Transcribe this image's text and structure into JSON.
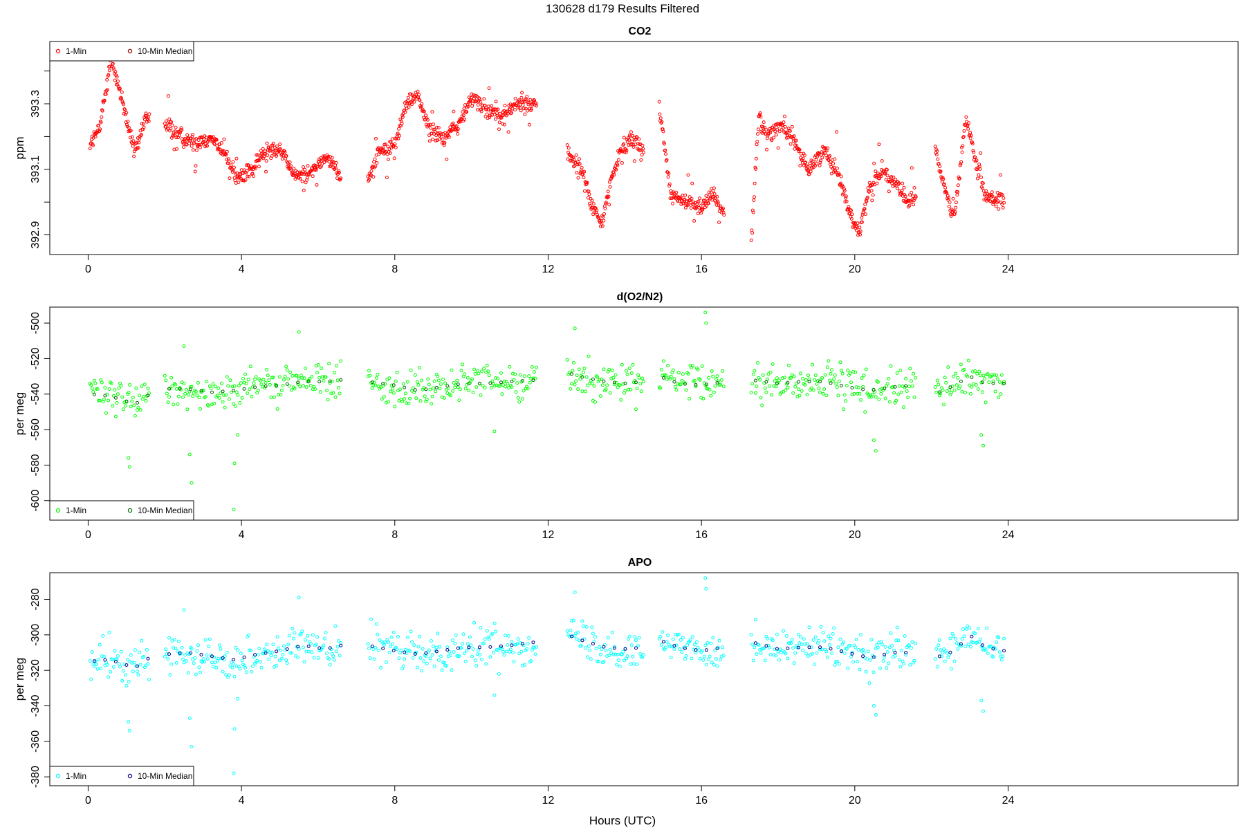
{
  "figure": {
    "title": "130628   d179   Results Filtered",
    "xlabel": "Hours (UTC)"
  },
  "chart_data": [
    {
      "type": "scatter",
      "title": "CO2",
      "ylabel": "ppm",
      "xlim": [
        -1,
        30
      ],
      "ylim": [
        392.84,
        393.49
      ],
      "xticks": [
        0,
        4,
        8,
        12,
        16,
        20,
        24
      ],
      "yticks": [
        392.9,
        393.0,
        393.1,
        393.2,
        393.3,
        393.4
      ],
      "ytick_labels": [
        "392.9",
        "",
        "393.1",
        "",
        "393.3",
        ""
      ],
      "legend_position": "top-left",
      "legend": [
        {
          "label": "1-Min",
          "color": "#ff0000"
        },
        {
          "label": "10-Min Median",
          "color": "#8b0000"
        }
      ],
      "series_color": "#ff0000",
      "median_color": "#8b0000",
      "segments": [
        {
          "x0": 0.05,
          "x1": 1.6,
          "points": [
            [
              0.05,
              393.18
            ],
            [
              0.3,
              393.22
            ],
            [
              0.45,
              393.34
            ],
            [
              0.6,
              393.43
            ],
            [
              0.75,
              393.38
            ],
            [
              0.9,
              393.3
            ],
            [
              1.05,
              393.23
            ],
            [
              1.2,
              393.16
            ],
            [
              1.35,
              393.19
            ],
            [
              1.5,
              393.25
            ],
            [
              1.6,
              393.25
            ]
          ]
        },
        {
          "x0": 2.0,
          "x1": 6.6,
          "points": [
            [
              2.0,
              393.24
            ],
            [
              2.4,
              393.2
            ],
            [
              2.8,
              393.18
            ],
            [
              3.2,
              393.2
            ],
            [
              3.6,
              393.14
            ],
            [
              3.9,
              393.07
            ],
            [
              4.3,
              393.1
            ],
            [
              4.7,
              393.17
            ],
            [
              5.0,
              393.16
            ],
            [
              5.4,
              393.08
            ],
            [
              5.8,
              393.09
            ],
            [
              6.2,
              393.14
            ],
            [
              6.6,
              393.08
            ]
          ]
        },
        {
          "x0": 7.3,
          "x1": 11.7,
          "points": [
            [
              7.3,
              393.07
            ],
            [
              7.6,
              393.16
            ],
            [
              8.0,
              393.17
            ],
            [
              8.3,
              393.3
            ],
            [
              8.6,
              393.33
            ],
            [
              8.9,
              393.22
            ],
            [
              9.3,
              393.2
            ],
            [
              9.7,
              393.24
            ],
            [
              10.0,
              393.32
            ],
            [
              10.4,
              393.28
            ],
            [
              10.8,
              393.26
            ],
            [
              11.2,
              393.3
            ],
            [
              11.6,
              393.3
            ]
          ]
        },
        {
          "x0": 12.5,
          "x1": 14.5,
          "points": [
            [
              12.5,
              393.15
            ],
            [
              12.9,
              393.09
            ],
            [
              13.1,
              393.0
            ],
            [
              13.4,
              392.93
            ],
            [
              13.6,
              393.05
            ],
            [
              13.9,
              393.16
            ],
            [
              14.2,
              393.2
            ],
            [
              14.5,
              393.15
            ]
          ]
        },
        {
          "x0": 14.9,
          "x1": 16.6,
          "points": [
            [
              14.9,
              393.3
            ],
            [
              15.2,
              393.02
            ],
            [
              15.6,
              393.0
            ],
            [
              16.0,
              392.99
            ],
            [
              16.3,
              393.02
            ],
            [
              16.6,
              392.96
            ]
          ]
        },
        {
          "x0": 17.3,
          "x1": 18.8,
          "points": [
            [
              17.3,
              392.88
            ],
            [
              17.5,
              393.27
            ],
            [
              17.7,
              393.2
            ],
            [
              18.1,
              393.24
            ],
            [
              18.5,
              393.16
            ],
            [
              18.8,
              393.1
            ]
          ]
        },
        {
          "x0": 18.8,
          "x1": 21.6,
          "points": [
            [
              18.8,
              393.1
            ],
            [
              19.2,
              393.16
            ],
            [
              19.6,
              393.08
            ],
            [
              19.9,
              392.96
            ],
            [
              20.1,
              392.9
            ],
            [
              20.4,
              393.05
            ],
            [
              20.7,
              393.1
            ],
            [
              21.0,
              393.06
            ],
            [
              21.4,
              393.0
            ],
            [
              21.6,
              393.02
            ]
          ]
        },
        {
          "x0": 22.1,
          "x1": 23.9,
          "points": [
            [
              22.1,
              393.16
            ],
            [
              22.4,
              393.02
            ],
            [
              22.6,
              392.95
            ],
            [
              22.9,
              393.26
            ],
            [
              23.1,
              393.15
            ],
            [
              23.4,
              393.02
            ],
            [
              23.9,
              393.0
            ]
          ]
        }
      ]
    },
    {
      "type": "scatter",
      "title": "d(O2/N2)",
      "ylabel": "per meg",
      "xlim": [
        -1,
        30
      ],
      "ylim": [
        -611,
        -491
      ],
      "xticks": [
        0,
        4,
        8,
        12,
        16,
        20,
        24
      ],
      "yticks": [
        -600,
        -580,
        -560,
        -540,
        -520,
        -500
      ],
      "ytick_labels": [
        "-600",
        "-580",
        "-560",
        "-540",
        "-520",
        "-500"
      ],
      "legend_position": "bottom-left",
      "legend": [
        {
          "label": "1-Min",
          "color": "#00ff00"
        },
        {
          "label": "10-Min Median",
          "color": "#006400"
        }
      ],
      "series_color": "#00ff00",
      "median_color": "#006400",
      "segments": [
        {
          "x0": 0.05,
          "x1": 1.6,
          "points": [
            [
              0.05,
              -540
            ],
            [
              0.5,
              -541
            ],
            [
              0.9,
              -543
            ],
            [
              1.2,
              -546
            ],
            [
              1.5,
              -542
            ],
            [
              1.6,
              -540
            ]
          ]
        },
        {
          "x0": 2.0,
          "x1": 6.6,
          "points": [
            [
              2.0,
              -537
            ],
            [
              2.6,
              -537
            ],
            [
              3.2,
              -539
            ],
            [
              3.8,
              -538
            ],
            [
              4.4,
              -536
            ],
            [
              5.0,
              -535
            ],
            [
              5.6,
              -533
            ],
            [
              6.2,
              -533
            ],
            [
              6.6,
              -532
            ]
          ]
        },
        {
          "x0": 7.3,
          "x1": 11.7,
          "points": [
            [
              7.3,
              -533
            ],
            [
              8.0,
              -535
            ],
            [
              8.6,
              -538
            ],
            [
              9.2,
              -536
            ],
            [
              9.8,
              -534
            ],
            [
              10.4,
              -534
            ],
            [
              11.0,
              -533
            ],
            [
              11.7,
              -532
            ]
          ]
        },
        {
          "x0": 12.5,
          "x1": 14.5,
          "points": [
            [
              12.5,
              -528
            ],
            [
              13.0,
              -531
            ],
            [
              13.5,
              -533
            ],
            [
              14.0,
              -534
            ],
            [
              14.5,
              -533
            ]
          ]
        },
        {
          "x0": 14.9,
          "x1": 16.6,
          "points": [
            [
              14.9,
              -530
            ],
            [
              15.4,
              -534
            ],
            [
              16.0,
              -535
            ],
            [
              16.6,
              -533
            ]
          ]
        },
        {
          "x0": 17.3,
          "x1": 21.6,
          "points": [
            [
              17.3,
              -532
            ],
            [
              18.0,
              -534
            ],
            [
              18.6,
              -533
            ],
            [
              19.2,
              -533
            ],
            [
              19.8,
              -536
            ],
            [
              20.4,
              -538
            ],
            [
              21.0,
              -536
            ],
            [
              21.6,
              -535
            ]
          ]
        },
        {
          "x0": 22.1,
          "x1": 23.9,
          "points": [
            [
              22.1,
              -540
            ],
            [
              22.6,
              -535
            ],
            [
              23.0,
              -530
            ],
            [
              23.4,
              -534
            ],
            [
              23.9,
              -534
            ]
          ]
        }
      ],
      "outliers": [
        [
          1.05,
          -576
        ],
        [
          1.08,
          -581
        ],
        [
          2.65,
          -574
        ],
        [
          2.7,
          -590
        ],
        [
          3.8,
          -605
        ],
        [
          3.82,
          -579
        ],
        [
          3.9,
          -563
        ],
        [
          2.5,
          -513
        ],
        [
          5.5,
          -505
        ],
        [
          12.7,
          -503
        ],
        [
          16.1,
          -494
        ],
        [
          16.12,
          -500
        ],
        [
          10.6,
          -561
        ],
        [
          20.5,
          -566
        ],
        [
          20.55,
          -572
        ],
        [
          23.3,
          -563
        ],
        [
          23.35,
          -569
        ]
      ]
    },
    {
      "type": "scatter",
      "title": "APO",
      "ylabel": "per meg",
      "xlim": [
        -1,
        30
      ],
      "ylim": [
        -385,
        -265
      ],
      "xticks": [
        0,
        4,
        8,
        12,
        16,
        20,
        24
      ],
      "yticks": [
        -380,
        -360,
        -340,
        -320,
        -300,
        -280
      ],
      "ytick_labels": [
        "-380",
        "-360",
        "-340",
        "-320",
        "-300",
        "-280"
      ],
      "legend_position": "bottom-left",
      "legend": [
        {
          "label": "1-Min",
          "color": "#00ffff"
        },
        {
          "label": "10-Min Median",
          "color": "#00008b"
        }
      ],
      "series_color": "#00ffff",
      "median_color": "#00008b",
      "segments": [
        {
          "x0": 0.05,
          "x1": 1.6,
          "points": [
            [
              0.05,
              -315
            ],
            [
              0.5,
              -314
            ],
            [
              0.9,
              -316
            ],
            [
              1.2,
              -319
            ],
            [
              1.5,
              -314
            ],
            [
              1.6,
              -313
            ]
          ]
        },
        {
          "x0": 2.0,
          "x1": 6.6,
          "points": [
            [
              2.0,
              -311
            ],
            [
              2.6,
              -310
            ],
            [
              3.2,
              -312
            ],
            [
              3.8,
              -314
            ],
            [
              4.4,
              -311
            ],
            [
              5.0,
              -309
            ],
            [
              5.6,
              -306
            ],
            [
              6.2,
              -308
            ],
            [
              6.6,
              -306
            ]
          ]
        },
        {
          "x0": 7.3,
          "x1": 11.7,
          "points": [
            [
              7.3,
              -306
            ],
            [
              8.0,
              -309
            ],
            [
              8.6,
              -311
            ],
            [
              9.2,
              -309
            ],
            [
              9.8,
              -307
            ],
            [
              10.4,
              -307
            ],
            [
              11.0,
              -306
            ],
            [
              11.7,
              -304
            ]
          ]
        },
        {
          "x0": 12.5,
          "x1": 14.5,
          "points": [
            [
              12.5,
              -300
            ],
            [
              13.0,
              -304
            ],
            [
              13.5,
              -307
            ],
            [
              14.0,
              -308
            ],
            [
              14.5,
              -307
            ]
          ]
        },
        {
          "x0": 14.9,
          "x1": 16.6,
          "points": [
            [
              14.9,
              -303
            ],
            [
              15.4,
              -307
            ],
            [
              16.0,
              -309
            ],
            [
              16.6,
              -307
            ]
          ]
        },
        {
          "x0": 17.3,
          "x1": 21.6,
          "points": [
            [
              17.3,
              -304
            ],
            [
              18.0,
              -308
            ],
            [
              18.6,
              -307
            ],
            [
              19.2,
              -307
            ],
            [
              19.8,
              -310
            ],
            [
              20.4,
              -313
            ],
            [
              21.0,
              -310
            ],
            [
              21.6,
              -310
            ]
          ]
        },
        {
          "x0": 22.1,
          "x1": 23.9,
          "points": [
            [
              22.1,
              -313
            ],
            [
              22.6,
              -309
            ],
            [
              23.0,
              -300
            ],
            [
              23.4,
              -307
            ],
            [
              23.9,
              -309
            ]
          ]
        }
      ],
      "outliers": [
        [
          1.05,
          -349
        ],
        [
          1.08,
          -354
        ],
        [
          2.65,
          -347
        ],
        [
          2.7,
          -363
        ],
        [
          3.8,
          -378
        ],
        [
          3.82,
          -353
        ],
        [
          3.9,
          -336
        ],
        [
          2.5,
          -286
        ],
        [
          5.5,
          -279
        ],
        [
          12.7,
          -276
        ],
        [
          16.1,
          -268
        ],
        [
          16.12,
          -274
        ],
        [
          10.6,
          -334
        ],
        [
          20.5,
          -340
        ],
        [
          20.55,
          -345
        ],
        [
          23.3,
          -337
        ],
        [
          23.35,
          -343
        ]
      ]
    }
  ]
}
